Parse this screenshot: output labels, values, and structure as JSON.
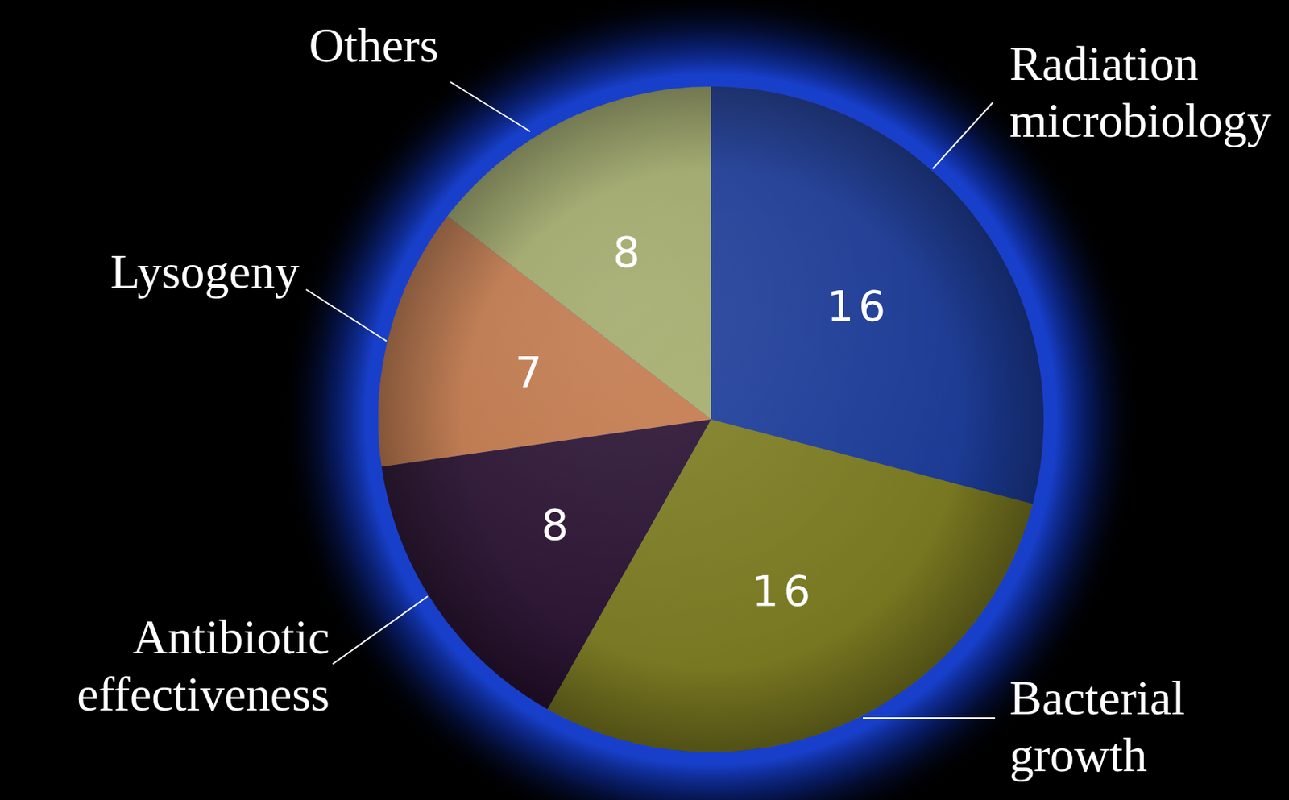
{
  "chart_data": {
    "type": "pie",
    "categories": [
      "Radiation microbiology",
      "Bacterial growth",
      "Antibiotic effectiveness",
      "Lysogeny",
      "Others"
    ],
    "values": [
      16,
      16,
      8,
      7,
      8
    ],
    "colors": [
      "#1c3c9a",
      "#7d7c22",
      "#2a1232",
      "#c57a4c",
      "#a4ad6c"
    ],
    "data_labels": true
  }
}
